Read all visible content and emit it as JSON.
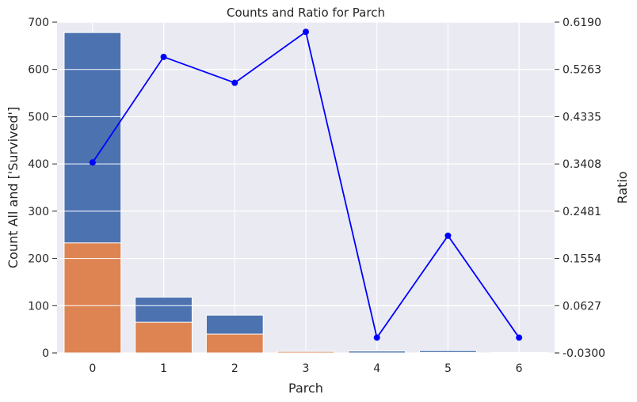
{
  "chart_data": {
    "type": "bar",
    "title": "Counts and Ratio for Parch",
    "xlabel": "Parch",
    "ylabel": "Count All and ['Survived']",
    "y2label": "Ratio",
    "categories": [
      "0",
      "1",
      "2",
      "3",
      "4",
      "5",
      "6"
    ],
    "ylim": [
      0,
      700
    ],
    "yticks": [
      "0",
      "100",
      "200",
      "300",
      "400",
      "500",
      "600",
      "700"
    ],
    "y2lim": [
      -0.03,
      0.619
    ],
    "y2ticks": [
      "-0.0300",
      "0.0627",
      "0.1554",
      "0.2481",
      "0.3408",
      "0.4335",
      "0.5263",
      "0.6190"
    ],
    "grid": true,
    "series": [
      {
        "kind": "bar",
        "values": [
          678,
          118,
          80,
          5,
          4,
          5,
          1
        ],
        "color": "#4c72b0"
      },
      {
        "kind": "bar",
        "values": [
          233,
          65,
          40,
          3,
          0,
          1,
          0
        ],
        "color": "#dd8452"
      },
      {
        "kind": "line",
        "axis": "right",
        "values": [
          0.3437,
          0.5508,
          0.5,
          0.6,
          0.0,
          0.2,
          0.0
        ],
        "color": "#0000ff"
      }
    ],
    "colors": {
      "background": "#eaeaf2",
      "grid": "#ffffff",
      "y2label": "#0000ff"
    }
  }
}
